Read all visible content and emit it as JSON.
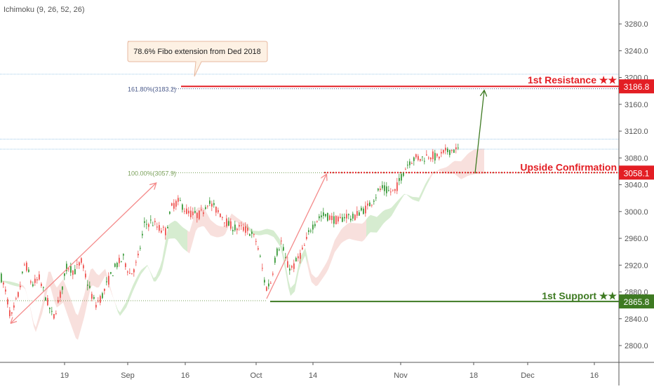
{
  "indicator_label": "Ichimoku (9, 26, 52, 26)",
  "colors": {
    "up": "#26a69a",
    "up_body": "#3a9a3a",
    "down": "#ef5350",
    "resistance": "#e31e24",
    "support": "#3e7a22",
    "confirmation": "#e31e24",
    "cloud_green": "#c8e6c0",
    "cloud_red": "#f6d5d2",
    "fib": "#7aa05a",
    "arrow_pink": "#f48a8a",
    "arrow_green": "#3e7a22",
    "callout_bg": "#fdf1e4",
    "callout_border": "#e8b9a0"
  },
  "annotations": {
    "callout": "78.6% Fibo extension from Ded 2018",
    "fib_161": "161.80%(3183.2)",
    "fib_100": "100.00%(3057.9)",
    "resistance_label": "1st Resistance ★★",
    "confirmation_label": "Upside Confirmation",
    "support_label": "1st Support ★★"
  },
  "chart_data": {
    "type": "candlestick",
    "y_axis": {
      "ylim": [
        2770,
        3320
      ],
      "ticks": [
        2800,
        2840,
        2880,
        2920,
        2960,
        3000,
        3040,
        3080,
        3120,
        3160,
        3200,
        3240,
        3280
      ],
      "tick_labels": [
        "2800.0",
        "2840.0",
        "2880.0",
        "2920.0",
        "2960.0",
        "3000.0",
        "3040.0",
        "3080.0",
        "3120.0",
        "3160.0",
        "3200.0",
        "3240.0",
        "3280.0"
      ]
    },
    "x_axis": {
      "tick_labels": [
        "19",
        "Sep",
        "16",
        "Oct",
        "14",
        "Nov",
        "18",
        "Dec",
        "16"
      ]
    },
    "levels": [
      {
        "name": "1st Resistance",
        "value": 3186.8,
        "badge": "3186.8"
      },
      {
        "name": "Upside Confirmation",
        "value": 3058.1,
        "badge": "3058.1"
      },
      {
        "name": "1st Support",
        "value": 2865.8,
        "badge": "2865.8"
      }
    ],
    "fib_levels": [
      {
        "label": "161.80%(3183.2)",
        "value": 3183.2
      },
      {
        "label": "100.00%(3057.9)",
        "value": 3057.9
      }
    ],
    "price_path": [
      [
        0,
        2905
      ],
      [
        7,
        2880
      ],
      [
        15,
        2840
      ],
      [
        25,
        2875
      ],
      [
        35,
        2925
      ],
      [
        45,
        2890
      ],
      [
        55,
        2900
      ],
      [
        65,
        2870
      ],
      [
        75,
        2840
      ],
      [
        85,
        2875
      ],
      [
        95,
        2920
      ],
      [
        105,
        2910
      ],
      [
        115,
        2925
      ],
      [
        125,
        2890
      ],
      [
        135,
        2860
      ],
      [
        145,
        2875
      ],
      [
        155,
        2900
      ],
      [
        165,
        2920
      ],
      [
        175,
        2930
      ],
      [
        185,
        2905
      ],
      [
        195,
        2925
      ],
      [
        205,
        2980
      ],
      [
        215,
        2985
      ],
      [
        225,
        2975
      ],
      [
        235,
        2970
      ],
      [
        245,
        3010
      ],
      [
        255,
        3015
      ],
      [
        265,
        3000
      ],
      [
        275,
        2995
      ],
      [
        285,
        2995
      ],
      [
        295,
        3015
      ],
      [
        305,
        3005
      ],
      [
        315,
        2995
      ],
      [
        325,
        2980
      ],
      [
        335,
        2975
      ],
      [
        345,
        2975
      ],
      [
        355,
        2970
      ],
      [
        365,
        2955
      ],
      [
        372,
        2920
      ],
      [
        378,
        2885
      ],
      [
        385,
        2895
      ],
      [
        392,
        2935
      ],
      [
        400,
        2955
      ],
      [
        408,
        2920
      ],
      [
        416,
        2915
      ],
      [
        424,
        2930
      ],
      [
        432,
        2945
      ],
      [
        442,
        2975
      ],
      [
        452,
        2990
      ],
      [
        462,
        2995
      ],
      [
        472,
        2990
      ],
      [
        482,
        2985
      ],
      [
        492,
        2995
      ],
      [
        502,
        2990
      ],
      [
        512,
        3000
      ],
      [
        522,
        3005
      ],
      [
        532,
        3020
      ],
      [
        542,
        3035
      ],
      [
        552,
        3030
      ],
      [
        562,
        3030
      ],
      [
        572,
        3055
      ],
      [
        582,
        3075
      ],
      [
        592,
        3080
      ],
      [
        602,
        3080
      ],
      [
        612,
        3085
      ],
      [
        622,
        3080
      ],
      [
        632,
        3088
      ],
      [
        642,
        3092
      ],
      [
        652,
        3092
      ]
    ]
  }
}
